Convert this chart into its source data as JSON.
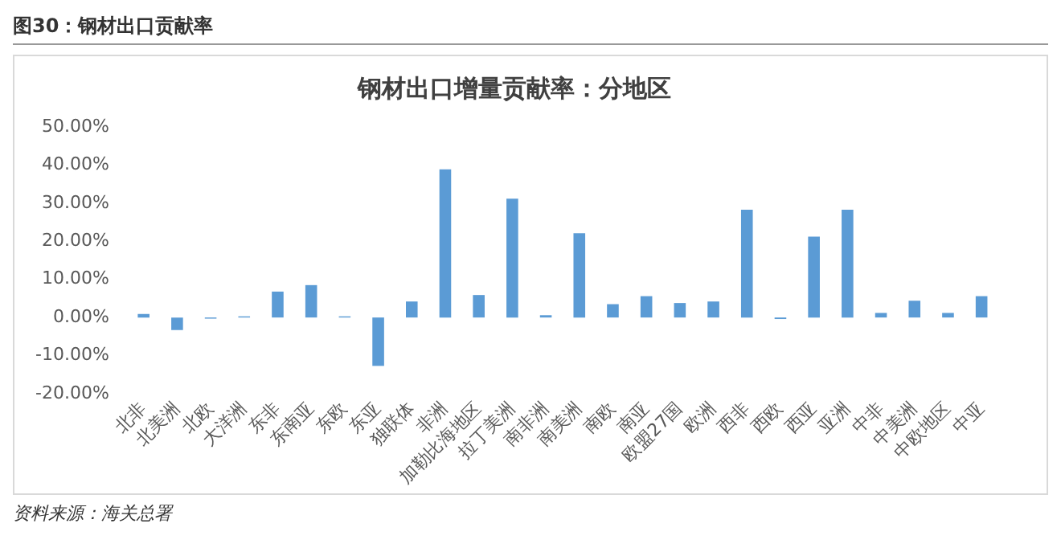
{
  "chart_data": {
    "type": "bar",
    "title": "钢材出口增量贡献率：分地区",
    "subtitle": "图30：钢材出口贡献率",
    "categories": [
      "北非",
      "北美洲",
      "北欧",
      "大洋洲",
      "东非",
      "东南亚",
      "东欧",
      "东亚",
      "独联体",
      "非洲",
      "加勒比海地区",
      "拉丁美洲",
      "南非洲",
      "南美洲",
      "南欧",
      "南亚",
      "欧盟27国",
      "欧洲",
      "西非",
      "西欧",
      "西亚",
      "亚洲",
      "中非",
      "中美洲",
      "中欧地区",
      "中亚"
    ],
    "values": [
      0.9,
      -3.3,
      -0.3,
      0.3,
      6.8,
      8.5,
      0.3,
      -12.7,
      4.2,
      38.9,
      5.9,
      31.2,
      0.6,
      22.1,
      3.5,
      5.6,
      3.8,
      4.2,
      28.3,
      -0.4,
      21.2,
      28.3,
      1.2,
      4.4,
      1.2,
      5.6
    ],
    "color": "#5b9bd5",
    "ylim": [
      -20,
      50
    ],
    "yticks": [
      {
        "value": -20,
        "label": "-20.00%"
      },
      {
        "value": -10,
        "label": "-10.00%"
      },
      {
        "value": 0,
        "label": "0.00%"
      },
      {
        "value": 10,
        "label": "10.00%"
      },
      {
        "value": 20,
        "label": "20.00%"
      },
      {
        "value": 30,
        "label": "30.00%"
      },
      {
        "value": 40,
        "label": "40.00%"
      },
      {
        "value": 50,
        "label": "50.00%"
      }
    ],
    "grid": false,
    "legend": false,
    "annotations": [
      "资料来源：海关总署"
    ]
  }
}
